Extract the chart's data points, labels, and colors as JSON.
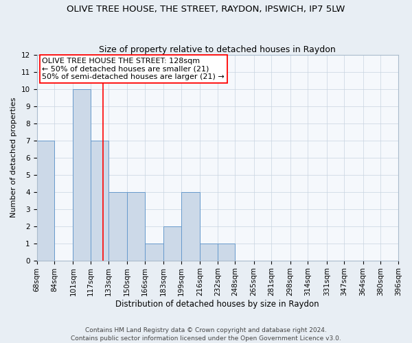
{
  "title": "OLIVE TREE HOUSE, THE STREET, RAYDON, IPSWICH, IP7 5LW",
  "subtitle": "Size of property relative to detached houses in Raydon",
  "xlabel": "Distribution of detached houses by size in Raydon",
  "ylabel": "Number of detached properties",
  "bin_edges": [
    68,
    84,
    101,
    117,
    133,
    150,
    166,
    183,
    199,
    216,
    232,
    248,
    265,
    281,
    298,
    314,
    331,
    347,
    364,
    380,
    396
  ],
  "counts": [
    7,
    0,
    10,
    7,
    4,
    4,
    1,
    2,
    4,
    1,
    1,
    0,
    0,
    0,
    0,
    0,
    0,
    0,
    0,
    0
  ],
  "bar_color": "#ccd9e8",
  "bar_edge_color": "#6699cc",
  "property_size": 128,
  "vline_color": "red",
  "annotation_line1": "OLIVE TREE HOUSE THE STREET: 128sqm",
  "annotation_line2": "← 50% of detached houses are smaller (21)",
  "annotation_line3": "50% of semi-detached houses are larger (21) →",
  "annotation_box_facecolor": "white",
  "annotation_box_edgecolor": "red",
  "ylim": [
    0,
    12
  ],
  "yticks": [
    0,
    1,
    2,
    3,
    4,
    5,
    6,
    7,
    8,
    9,
    10,
    11,
    12
  ],
  "footer_line1": "Contains HM Land Registry data © Crown copyright and database right 2024.",
  "footer_line2": "Contains public sector information licensed under the Open Government Licence v3.0.",
  "title_fontsize": 9.5,
  "subtitle_fontsize": 9,
  "xlabel_fontsize": 8.5,
  "ylabel_fontsize": 8,
  "tick_fontsize": 7.5,
  "annotation_fontsize": 8,
  "footer_fontsize": 6.5,
  "fig_facecolor": "#e8eef4",
  "axes_facecolor": "#f5f8fc",
  "grid_color": "#c8d4e0",
  "spine_color": "#aabbcc"
}
